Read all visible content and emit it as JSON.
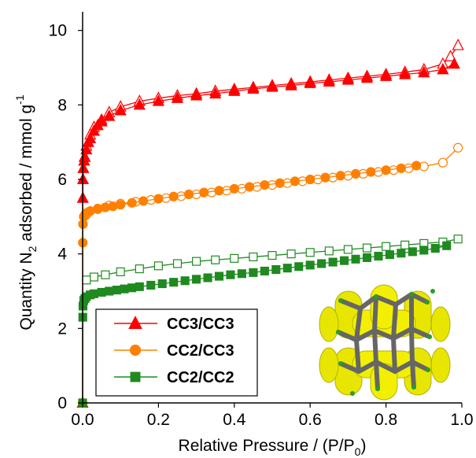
{
  "chart_data": {
    "type": "line",
    "x_label": {
      "main": "Relative Pressure / (P/P",
      "sub": "0",
      "tail": ")"
    },
    "y_label": {
      "pre": "Quantity N",
      "sub": "2",
      "mid": " adsorbed / mmol g",
      "sup": "-1"
    },
    "xlim": [
      0,
      1.0
    ],
    "ylim": [
      0,
      10.5
    ],
    "x_ticks": [
      "0.0",
      "0.2",
      "0.4",
      "0.6",
      "0.8",
      "1.0"
    ],
    "x_tick_values": [
      0,
      0.2,
      0.4,
      0.6,
      0.8,
      1.0
    ],
    "y_ticks": [
      "0",
      "2",
      "4",
      "6",
      "8",
      "10"
    ],
    "y_tick_values": [
      0,
      2,
      4,
      6,
      8,
      10
    ],
    "legend_position": "bottom-left",
    "series": [
      {
        "name": "CC3/CC3",
        "color": "#ff0000",
        "marker": "triangle",
        "adsorption": {
          "x": [
            0.0,
            0.0005,
            0.001,
            0.002,
            0.004,
            0.006,
            0.01,
            0.015,
            0.02,
            0.03,
            0.04,
            0.05,
            0.07,
            0.1,
            0.15,
            0.2,
            0.25,
            0.3,
            0.35,
            0.4,
            0.45,
            0.5,
            0.55,
            0.6,
            0.65,
            0.7,
            0.75,
            0.8,
            0.85,
            0.9,
            0.95,
            0.98
          ],
          "y": [
            0.0,
            5.5,
            6.0,
            6.3,
            6.5,
            6.6,
            6.8,
            7.0,
            7.1,
            7.3,
            7.45,
            7.55,
            7.7,
            7.85,
            8.0,
            8.1,
            8.18,
            8.25,
            8.3,
            8.37,
            8.43,
            8.48,
            8.52,
            8.58,
            8.62,
            8.67,
            8.72,
            8.77,
            8.82,
            8.87,
            8.95,
            9.1
          ]
        },
        "desorption": {
          "x": [
            0.99,
            0.97,
            0.95,
            0.9,
            0.85,
            0.8,
            0.75,
            0.7,
            0.65,
            0.6,
            0.55,
            0.5,
            0.45,
            0.4,
            0.35,
            0.3,
            0.25,
            0.2,
            0.15,
            0.1,
            0.07,
            0.05,
            0.03,
            0.02,
            0.01,
            0.005
          ],
          "y": [
            9.6,
            9.3,
            9.1,
            8.95,
            8.88,
            8.82,
            8.77,
            8.72,
            8.67,
            8.62,
            8.57,
            8.52,
            8.47,
            8.42,
            8.37,
            8.3,
            8.25,
            8.18,
            8.1,
            7.95,
            7.8,
            7.6,
            7.4,
            7.2,
            6.9,
            6.6
          ]
        }
      },
      {
        "name": "CC2/CC3",
        "color": "#ff8000",
        "marker": "circle",
        "adsorption": {
          "x": [
            0.0,
            0.0005,
            0.001,
            0.003,
            0.006,
            0.01,
            0.02,
            0.04,
            0.06,
            0.08,
            0.1,
            0.13,
            0.16,
            0.2,
            0.24,
            0.28,
            0.32,
            0.36,
            0.4,
            0.44,
            0.48,
            0.52,
            0.56,
            0.6,
            0.64,
            0.68,
            0.72,
            0.76,
            0.8,
            0.84,
            0.88
          ],
          "y": [
            0.0,
            4.3,
            4.8,
            5.0,
            5.05,
            5.1,
            5.15,
            5.2,
            5.25,
            5.28,
            5.32,
            5.37,
            5.42,
            5.48,
            5.54,
            5.6,
            5.65,
            5.7,
            5.75,
            5.8,
            5.85,
            5.9,
            5.95,
            6.0,
            6.05,
            6.1,
            6.15,
            6.2,
            6.25,
            6.3,
            6.37
          ]
        },
        "desorption": {
          "x": [
            0.99,
            0.95,
            0.9,
            0.86,
            0.82,
            0.78,
            0.74,
            0.7,
            0.66,
            0.62,
            0.58,
            0.54,
            0.5,
            0.46,
            0.42,
            0.38,
            0.34,
            0.3,
            0.26,
            0.22,
            0.18,
            0.14,
            0.1,
            0.07,
            0.04,
            0.02,
            0.01
          ],
          "y": [
            6.85,
            6.45,
            6.35,
            6.3,
            6.25,
            6.2,
            6.15,
            6.1,
            6.05,
            6.0,
            5.95,
            5.9,
            5.85,
            5.8,
            5.75,
            5.7,
            5.65,
            5.6,
            5.55,
            5.5,
            5.45,
            5.4,
            5.35,
            5.3,
            5.22,
            5.15,
            5.05
          ]
        }
      },
      {
        "name": "CC2/CC2",
        "color": "#1f8a1f",
        "marker": "square",
        "adsorption": {
          "x": [
            0.0,
            0.0005,
            0.001,
            0.003,
            0.006,
            0.01,
            0.02,
            0.03,
            0.05,
            0.07,
            0.09,
            0.11,
            0.13,
            0.15,
            0.18,
            0.21,
            0.24,
            0.27,
            0.3,
            0.33,
            0.36,
            0.39,
            0.42,
            0.45,
            0.48,
            0.51,
            0.54,
            0.57,
            0.6,
            0.63,
            0.66,
            0.69,
            0.72,
            0.75,
            0.78,
            0.81,
            0.84,
            0.87,
            0.9,
            0.93,
            0.96
          ],
          "y": [
            0.0,
            2.3,
            2.6,
            2.75,
            2.8,
            2.85,
            2.9,
            2.93,
            2.97,
            3.0,
            3.03,
            3.06,
            3.09,
            3.12,
            3.16,
            3.2,
            3.24,
            3.28,
            3.32,
            3.36,
            3.4,
            3.44,
            3.47,
            3.5,
            3.54,
            3.58,
            3.62,
            3.66,
            3.7,
            3.74,
            3.78,
            3.82,
            3.86,
            3.9,
            3.94,
            3.98,
            4.02,
            4.06,
            4.1,
            4.15,
            4.22
          ]
        },
        "desorption": {
          "x": [
            0.99,
            0.95,
            0.9,
            0.85,
            0.8,
            0.75,
            0.7,
            0.65,
            0.6,
            0.55,
            0.5,
            0.45,
            0.4,
            0.35,
            0.3,
            0.25,
            0.2,
            0.15,
            0.1,
            0.06,
            0.03,
            0.01
          ],
          "y": [
            4.4,
            4.32,
            4.28,
            4.24,
            4.2,
            4.16,
            4.12,
            4.08,
            4.04,
            4.0,
            3.96,
            3.92,
            3.88,
            3.84,
            3.8,
            3.74,
            3.68,
            3.6,
            3.52,
            3.44,
            3.38,
            3.3
          ]
        }
      }
    ]
  }
}
